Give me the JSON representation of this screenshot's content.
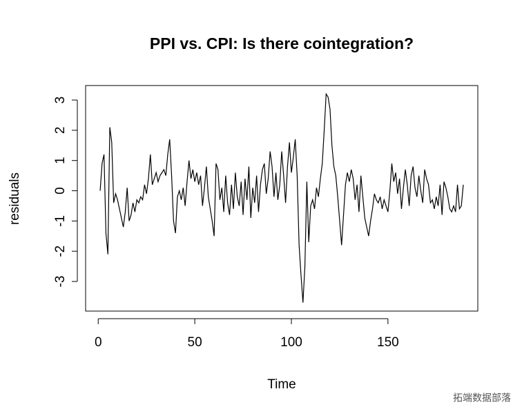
{
  "chart_data": {
    "type": "line",
    "title": "PPI vs. CPI: Is there cointegration?",
    "x_label": "Time",
    "y_label": "residuals",
    "watermark": "拓端数据部落",
    "color": "#000000",
    "xlim": [
      -6.52,
      196.52
    ],
    "ylim": [
      -3.98,
      3.48
    ],
    "xticks": [
      0,
      50,
      100,
      150
    ],
    "yticks": [
      -3,
      -2,
      -1,
      0,
      1,
      2,
      3
    ],
    "x": [
      1,
      2,
      3,
      4,
      5,
      6,
      7,
      8,
      9,
      10,
      11,
      12,
      13,
      14,
      15,
      16,
      17,
      18,
      19,
      20,
      21,
      22,
      23,
      24,
      25,
      26,
      27,
      28,
      29,
      30,
      31,
      32,
      33,
      34,
      35,
      36,
      37,
      38,
      39,
      40,
      41,
      42,
      43,
      44,
      45,
      46,
      47,
      48,
      49,
      50,
      51,
      52,
      53,
      54,
      55,
      56,
      57,
      58,
      59,
      60,
      61,
      62,
      63,
      64,
      65,
      66,
      67,
      68,
      69,
      70,
      71,
      72,
      73,
      74,
      75,
      76,
      77,
      78,
      79,
      80,
      81,
      82,
      83,
      84,
      85,
      86,
      87,
      88,
      89,
      90,
      91,
      92,
      93,
      94,
      95,
      96,
      97,
      98,
      99,
      100,
      101,
      102,
      103,
      104,
      105,
      106,
      107,
      108,
      109,
      110,
      111,
      112,
      113,
      114,
      115,
      116,
      117,
      118,
      119,
      120,
      121,
      122,
      123,
      124,
      125,
      126,
      127,
      128,
      129,
      130,
      131,
      132,
      133,
      134,
      135,
      136,
      137,
      138,
      139,
      140,
      141,
      142,
      143,
      144,
      145,
      146,
      147,
      148,
      149,
      150,
      151,
      152,
      153,
      154,
      155,
      156,
      157,
      158,
      159,
      160,
      161,
      162,
      163,
      164,
      165,
      166,
      167,
      168,
      169,
      170,
      171,
      172,
      173,
      174,
      175,
      176,
      177,
      178,
      179,
      180,
      181,
      182,
      183,
      184,
      185,
      186,
      187,
      188,
      189
    ],
    "values": [
      0.0,
      0.9,
      1.2,
      -1.4,
      -2.1,
      2.1,
      1.6,
      -0.4,
      -0.1,
      -0.3,
      -0.6,
      -0.9,
      -1.2,
      -0.7,
      0.1,
      -1.0,
      -0.8,
      -0.4,
      -0.7,
      -0.3,
      -0.4,
      -0.2,
      -0.3,
      0.2,
      -0.1,
      0.4,
      1.2,
      0.2,
      0.4,
      0.6,
      0.3,
      0.5,
      0.6,
      0.7,
      0.5,
      1.2,
      1.7,
      0.5,
      -1.0,
      -1.4,
      -0.2,
      0.0,
      -0.3,
      0.1,
      -0.5,
      0.3,
      1.0,
      0.4,
      0.7,
      0.3,
      0.6,
      0.2,
      0.5,
      -0.5,
      0.1,
      0.8,
      -0.2,
      -0.6,
      -1.0,
      -1.5,
      0.9,
      0.7,
      -0.3,
      0.1,
      -0.7,
      0.5,
      -0.4,
      -0.8,
      0.2,
      -0.6,
      0.6,
      -0.2,
      -0.5,
      0.3,
      -0.8,
      0.4,
      -0.3,
      0.8,
      -0.9,
      0.1,
      -0.4,
      0.5,
      -0.7,
      0.2,
      0.7,
      0.9,
      -0.1,
      0.4,
      1.3,
      0.8,
      -0.2,
      0.6,
      -0.3,
      0.2,
      1.3,
      0.5,
      -0.4,
      0.8,
      1.6,
      0.6,
      1.1,
      1.7,
      0.5,
      -1.8,
      -2.8,
      -3.7,
      -2.5,
      0.3,
      -1.7,
      -0.5,
      -0.3,
      -0.6,
      0.1,
      -0.2,
      0.4,
      0.9,
      2.0,
      3.2,
      3.1,
      2.7,
      1.5,
      0.8,
      0.5,
      -0.2,
      -1.0,
      -1.8,
      -0.8,
      0.2,
      0.6,
      0.3,
      0.7,
      0.4,
      -0.3,
      0.2,
      -0.7,
      0.5,
      -0.2,
      -0.9,
      -1.2,
      -1.5,
      -1.0,
      -0.6,
      -0.1,
      -0.3,
      -0.4,
      -0.2,
      -0.6,
      -0.3,
      -0.5,
      -0.7,
      0.0,
      0.9,
      0.3,
      0.6,
      -0.1,
      0.4,
      -0.6,
      0.1,
      0.7,
      0.2,
      -0.5,
      0.5,
      0.8,
      0.1,
      -0.2,
      0.5,
      0.0,
      -0.4,
      0.7,
      0.4,
      0.2,
      -0.4,
      -0.3,
      -0.6,
      -0.2,
      -0.5,
      0.2,
      -0.8,
      0.3,
      0.1,
      -0.2,
      -0.6,
      -0.7,
      -0.5,
      -0.7,
      0.2,
      -0.6,
      -0.5,
      0.2
    ]
  }
}
